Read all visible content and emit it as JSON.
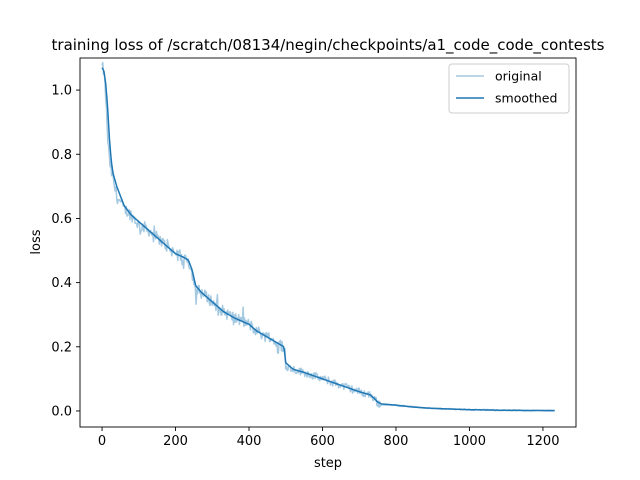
{
  "chart_data": {
    "type": "line",
    "title": "training loss of /scratch/08134/negin/checkpoints/a1_code_code_contests",
    "xlabel": "step",
    "ylabel": "loss",
    "xlim": [
      -60,
      1290
    ],
    "ylim": [
      -0.05,
      1.1
    ],
    "xticks": [
      0,
      200,
      400,
      600,
      800,
      1000,
      1200
    ],
    "yticks": [
      0.0,
      0.2,
      0.4,
      0.6,
      0.8,
      1.0
    ],
    "xtick_labels": [
      "0",
      "200",
      "400",
      "600",
      "800",
      "1000",
      "1200"
    ],
    "ytick_labels": [
      "0.0",
      "0.2",
      "0.4",
      "0.6",
      "0.8",
      "1.0"
    ],
    "legend": {
      "position": "upper right",
      "entries": [
        "original",
        "smoothed"
      ]
    },
    "series": [
      {
        "name": "original",
        "color": "#1f77b4",
        "opacity": 0.4,
        "noise": true,
        "x": [
          0,
          5,
          10,
          15,
          20,
          30,
          40,
          50,
          60,
          80,
          100,
          120,
          140,
          160,
          180,
          200,
          220,
          235,
          245,
          255,
          270,
          300,
          330,
          360,
          400,
          420,
          450,
          480,
          495,
          500,
          520,
          550,
          600,
          650,
          700,
          730,
          740,
          750,
          760,
          800,
          850,
          900,
          1000,
          1100,
          1232
        ],
        "y": [
          1.07,
          1.06,
          0.98,
          0.86,
          0.78,
          0.72,
          0.67,
          0.65,
          0.63,
          0.61,
          0.58,
          0.57,
          0.55,
          0.53,
          0.51,
          0.49,
          0.48,
          0.47,
          0.43,
          0.38,
          0.37,
          0.34,
          0.31,
          0.29,
          0.27,
          0.25,
          0.23,
          0.21,
          0.2,
          0.14,
          0.13,
          0.12,
          0.1,
          0.08,
          0.06,
          0.05,
          0.04,
          0.025,
          0.02,
          0.018,
          0.012,
          0.008,
          0.004,
          0.002,
          0.001
        ]
      },
      {
        "name": "smoothed",
        "color": "#1f77b4",
        "opacity": 1.0,
        "noise": false,
        "x": [
          0,
          5,
          10,
          15,
          20,
          25,
          30,
          40,
          50,
          60,
          80,
          100,
          120,
          140,
          160,
          180,
          200,
          220,
          235,
          245,
          255,
          270,
          300,
          330,
          360,
          400,
          420,
          450,
          480,
          495,
          500,
          520,
          550,
          600,
          650,
          700,
          730,
          740,
          750,
          760,
          800,
          850,
          900,
          1000,
          1100,
          1232
        ],
        "y": [
          1.07,
          1.06,
          1.02,
          0.95,
          0.85,
          0.78,
          0.74,
          0.7,
          0.67,
          0.64,
          0.61,
          0.59,
          0.57,
          0.55,
          0.53,
          0.51,
          0.49,
          0.48,
          0.47,
          0.44,
          0.39,
          0.37,
          0.34,
          0.31,
          0.29,
          0.27,
          0.25,
          0.23,
          0.21,
          0.2,
          0.15,
          0.13,
          0.12,
          0.1,
          0.08,
          0.06,
          0.05,
          0.04,
          0.028,
          0.022,
          0.018,
          0.012,
          0.008,
          0.004,
          0.002,
          0.001
        ]
      }
    ]
  }
}
